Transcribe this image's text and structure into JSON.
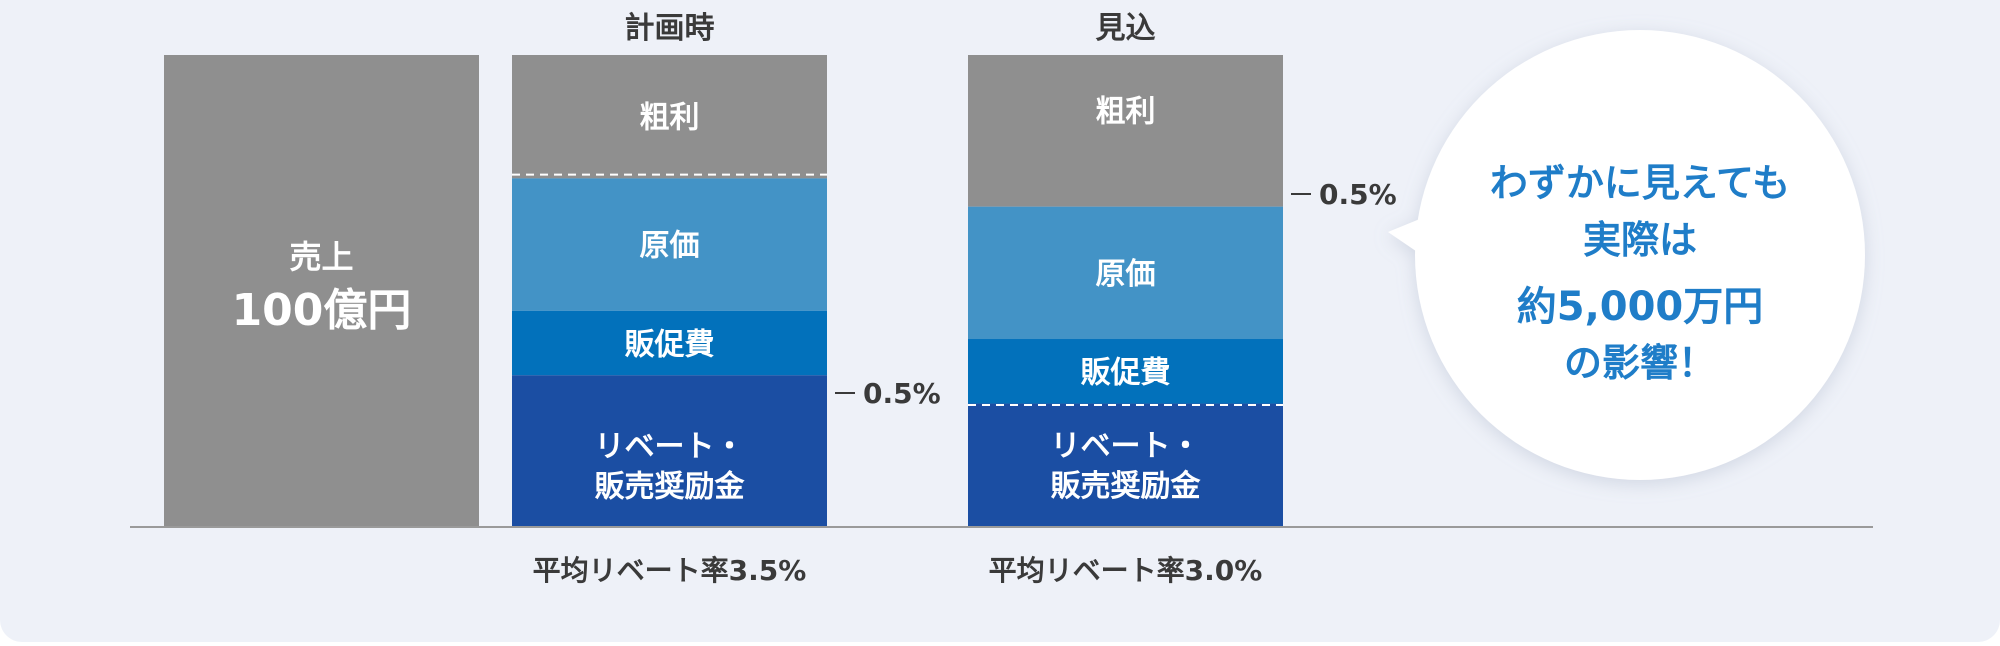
{
  "chart_data": {
    "type": "stacked-bar",
    "unit_note": "売上 = 100",
    "bars": [
      {
        "key": "sales",
        "header": "",
        "segments": [
          {
            "name": "売上",
            "value": 100,
            "color": "#8f8f8f",
            "label_lines": [
              "売上",
              "100億円"
            ]
          }
        ],
        "footer": ""
      },
      {
        "key": "plan",
        "header": "計画時",
        "segments": [
          {
            "name": "粗利",
            "value": 26.2,
            "color": "#8f8f8f",
            "label_lines": [
              "粗利"
            ]
          },
          {
            "name": "原価",
            "value": 28.1,
            "color": "#4393c6",
            "label_lines": [
              "原価"
            ]
          },
          {
            "name": "販促費",
            "value": 13.7,
            "color": "#0271bb",
            "label_lines": [
              "販促費"
            ]
          },
          {
            "name": "リベート・販売奨励金",
            "value": 32.0,
            "color": "#1b4ea3",
            "label_lines": [
              "リベート・",
              "販売奨励金"
            ]
          }
        ],
        "dashed_at": 25.4,
        "marker_label": "0.5%",
        "footer": "平均リベート率3.5%"
      },
      {
        "key": "forecast",
        "header": "見込",
        "segments": [
          {
            "name": "粗利",
            "value": 32.2,
            "color": "#8f8f8f",
            "label_lines": [
              "粗利"
            ]
          },
          {
            "name": "原価",
            "value": 28.1,
            "color": "#4393c6",
            "label_lines": [
              "原価"
            ]
          },
          {
            "name": "販促費",
            "value": 13.7,
            "color": "#0271bb",
            "label_lines": [
              "販促費"
            ]
          },
          {
            "name": "リベート・販売奨励金",
            "value": 26.0,
            "color": "#1b4ea3",
            "label_lines": [
              "リベート・",
              "販売奨励金"
            ]
          }
        ],
        "dashed_at": 74.3,
        "marker_label": "0.5%",
        "footer": "平均リベート率3.0%"
      }
    ],
    "callout_lines": [
      "わずかに見えても",
      "実際は",
      "約5,000万円",
      "の影響！"
    ],
    "colors": {
      "gray": "#8f8f8f",
      "light_blue": "#4393c6",
      "mid_blue": "#0271bb",
      "dark_blue": "#1b4ea3",
      "callout_text": "#1f7dc8"
    }
  }
}
